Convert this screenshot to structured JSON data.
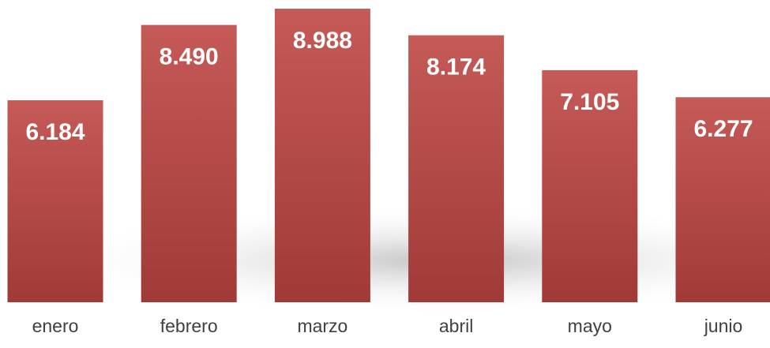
{
  "chart_data": {
    "type": "bar",
    "categories": [
      "enero",
      "febrero",
      "marzo",
      "abril",
      "mayo",
      "junio"
    ],
    "values": [
      6184,
      8490,
      8988,
      8174,
      7105,
      6277
    ],
    "value_labels": [
      "6.184",
      "8.490",
      "8.988",
      "8.174",
      "7.105",
      "6.277"
    ],
    "color": "#c0504d"
  }
}
